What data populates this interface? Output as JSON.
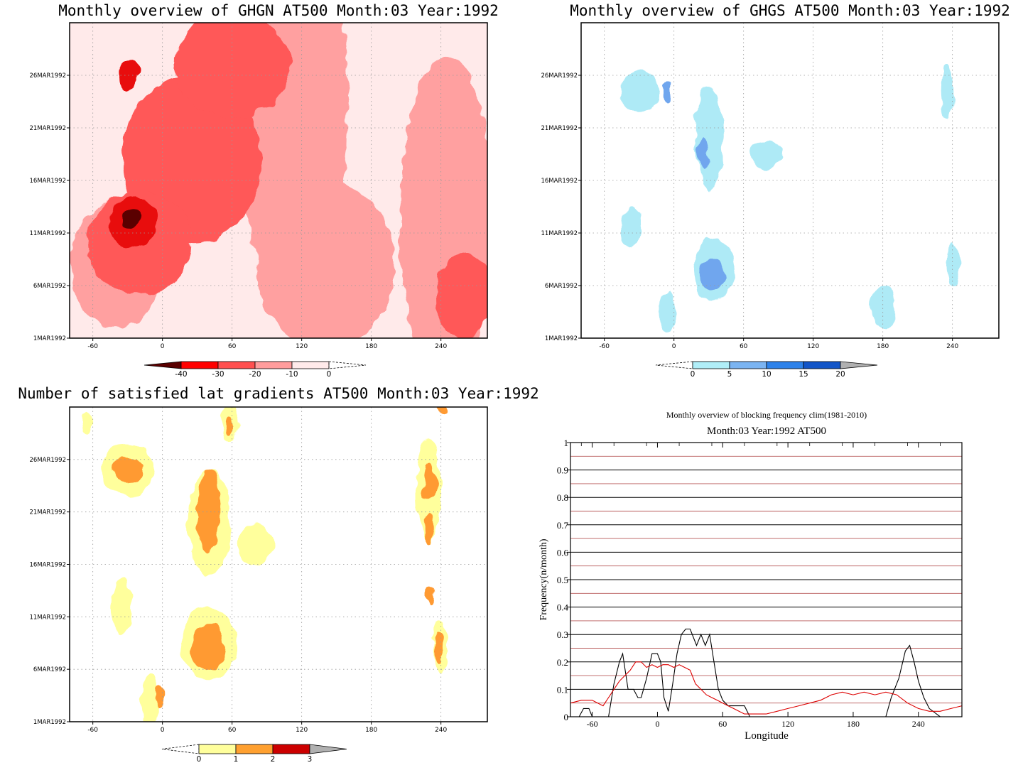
{
  "chart_data": [
    {
      "type": "heatmap",
      "title": "Monthly overview of GHGN AT500 Month:03 Year:1992",
      "x_ticks": [
        "-60",
        "0",
        "60",
        "120",
        "180",
        "240"
      ],
      "x_tick_values": [
        -60,
        0,
        60,
        120,
        180,
        240
      ],
      "xlim": [
        -80,
        280
      ],
      "y_ticks": [
        "1MAR1992",
        "6MAR1992",
        "11MAR1992",
        "16MAR1992",
        "21MAR1992",
        "26MAR1992"
      ],
      "y_tick_values": [
        1,
        6,
        11,
        16,
        21,
        26
      ],
      "ylim": [
        1,
        31
      ],
      "grid": true,
      "colorbar": {
        "ticks": [
          "-40",
          "-30",
          "-20",
          "-10",
          "0"
        ],
        "colors": [
          "#5a0000",
          "#ff0000",
          "#ff5050",
          "#ff9c9c",
          "#ffeaea"
        ]
      },
      "palette": [
        "#ffeaea",
        "#ffa0a0",
        "#ff5858",
        "#e81010",
        "#5a0000"
      ],
      "regions": [
        {
          "level": 1,
          "cx": 110,
          "cy": 24,
          "rx": 50,
          "ry": 18
        },
        {
          "level": 1,
          "cx": 140,
          "cy": 8,
          "rx": 60,
          "ry": 8
        },
        {
          "level": 1,
          "cx": 245,
          "cy": 12,
          "rx": 40,
          "ry": 16
        },
        {
          "level": 1,
          "cx": -40,
          "cy": 8,
          "rx": 40,
          "ry": 6
        },
        {
          "level": 2,
          "cx": 25,
          "cy": 18,
          "rx": 60,
          "ry": 8
        },
        {
          "level": 2,
          "cx": 60,
          "cy": 27,
          "rx": 50,
          "ry": 5
        },
        {
          "level": 2,
          "cx": -20,
          "cy": 10,
          "rx": 45,
          "ry": 5
        },
        {
          "level": 2,
          "cx": 260,
          "cy": 5,
          "rx": 25,
          "ry": 4
        },
        {
          "level": 3,
          "cx": -25,
          "cy": 12,
          "rx": 20,
          "ry": 2.5
        },
        {
          "level": 3,
          "cx": -30,
          "cy": 26,
          "rx": 10,
          "ry": 1.5
        },
        {
          "level": 4,
          "cx": -28,
          "cy": 12.3,
          "rx": 8,
          "ry": 1
        }
      ]
    },
    {
      "type": "heatmap",
      "title": "Monthly overview of GHGS AT500 Month:03 Year:1992",
      "x_ticks": [
        "-60",
        "0",
        "60",
        "120",
        "180",
        "240"
      ],
      "x_tick_values": [
        -60,
        0,
        60,
        120,
        180,
        240
      ],
      "xlim": [
        -80,
        280
      ],
      "y_ticks": [
        "1MAR1992",
        "6MAR1992",
        "11MAR1992",
        "16MAR1992",
        "21MAR1992",
        "26MAR1992"
      ],
      "y_tick_values": [
        1,
        6,
        11,
        16,
        21,
        26
      ],
      "ylim": [
        1,
        31
      ],
      "grid": true,
      "colorbar": {
        "ticks": [
          "0",
          "5",
          "10",
          "15",
          "20"
        ],
        "colors": [
          "#b0eef8",
          "#7bb4f2",
          "#2e82ea",
          "#1255c8",
          "#b0b0b0"
        ]
      },
      "palette": [
        "#ffffff",
        "#aeeaf6",
        "#6fa6ee",
        "#2e6fe0",
        "#1a3fae"
      ],
      "regions": [
        {
          "level": 1,
          "cx": 30,
          "cy": 20,
          "rx": 12,
          "ry": 5
        },
        {
          "level": 1,
          "cx": 35,
          "cy": 7.5,
          "rx": 18,
          "ry": 3
        },
        {
          "level": 1,
          "cx": -30,
          "cy": 24.5,
          "rx": 16,
          "ry": 2
        },
        {
          "level": 1,
          "cx": -37,
          "cy": 11.5,
          "rx": 7,
          "ry": 2
        },
        {
          "level": 1,
          "cx": 80,
          "cy": 18.5,
          "rx": 13,
          "ry": 1.3
        },
        {
          "level": 1,
          "cx": -6,
          "cy": 3.5,
          "rx": 7,
          "ry": 2
        },
        {
          "level": 1,
          "cx": 235,
          "cy": 24.5,
          "rx": 6,
          "ry": 2.5
        },
        {
          "level": 1,
          "cx": 240,
          "cy": 8,
          "rx": 5,
          "ry": 2
        },
        {
          "level": 1,
          "cx": 180,
          "cy": 4,
          "rx": 12,
          "ry": 2
        },
        {
          "level": 2,
          "cx": 33,
          "cy": 7,
          "rx": 10,
          "ry": 1.5
        },
        {
          "level": 2,
          "cx": 25,
          "cy": 18.5,
          "rx": 5,
          "ry": 1.5
        },
        {
          "level": 2,
          "cx": -5,
          "cy": 24.5,
          "rx": 4,
          "ry": 1
        }
      ]
    },
    {
      "type": "heatmap",
      "title": "Number of satisfied lat gradients AT500 Month:03 Year:1992",
      "x_ticks": [
        "-60",
        "0",
        "60",
        "120",
        "180",
        "240"
      ],
      "x_tick_values": [
        -60,
        0,
        60,
        120,
        180,
        240
      ],
      "xlim": [
        -80,
        280
      ],
      "y_ticks": [
        "1MAR1992",
        "6MAR1992",
        "11MAR1992",
        "16MAR1992",
        "21MAR1992",
        "26MAR1992"
      ],
      "y_tick_values": [
        1,
        6,
        11,
        16,
        21,
        26
      ],
      "ylim": [
        1,
        31
      ],
      "grid": true,
      "colorbar": {
        "ticks": [
          "0",
          "1",
          "2",
          "3"
        ],
        "colors": [
          "#ffff9c",
          "#ffa030",
          "#cc0000",
          "#b0b0b0"
        ]
      },
      "palette": [
        "#ffffff",
        "#ffff9c",
        "#ff9a30",
        "#cc0000"
      ],
      "regions": [
        {
          "level": 1,
          "cx": -30,
          "cy": 25,
          "rx": 22,
          "ry": 2.5
        },
        {
          "level": 1,
          "cx": 40,
          "cy": 20,
          "rx": 18,
          "ry": 5
        },
        {
          "level": 1,
          "cx": 40,
          "cy": 8.5,
          "rx": 25,
          "ry": 3.5
        },
        {
          "level": 1,
          "cx": 80,
          "cy": 18,
          "rx": 15,
          "ry": 2
        },
        {
          "level": 1,
          "cx": -35,
          "cy": 12,
          "rx": 9,
          "ry": 2.5
        },
        {
          "level": 1,
          "cx": 230,
          "cy": 23,
          "rx": 10,
          "ry": 5
        },
        {
          "level": 1,
          "cx": 240,
          "cy": 8,
          "rx": 7,
          "ry": 2.5
        },
        {
          "level": 1,
          "cx": -10,
          "cy": 3,
          "rx": 8,
          "ry": 2.5
        },
        {
          "level": 1,
          "cx": -65,
          "cy": 29.5,
          "rx": 5,
          "ry": 1
        },
        {
          "level": 1,
          "cx": 58,
          "cy": 29.5,
          "rx": 7,
          "ry": 2
        },
        {
          "level": 2,
          "cx": -30,
          "cy": 25,
          "rx": 14,
          "ry": 1.2
        },
        {
          "level": 2,
          "cx": 40,
          "cy": 21,
          "rx": 10,
          "ry": 4
        },
        {
          "level": 2,
          "cx": 40,
          "cy": 8,
          "rx": 14,
          "ry": 2.3
        },
        {
          "level": 2,
          "cx": 230,
          "cy": 24,
          "rx": 5,
          "ry": 2
        },
        {
          "level": 2,
          "cx": 230,
          "cy": 19.5,
          "rx": 5,
          "ry": 1.5
        },
        {
          "level": 2,
          "cx": 238,
          "cy": 8,
          "rx": 4,
          "ry": 1.5
        },
        {
          "level": 2,
          "cx": -2,
          "cy": 3.5,
          "rx": 3,
          "ry": 1
        },
        {
          "level": 2,
          "cx": 58,
          "cy": 29,
          "rx": 4,
          "ry": 1
        },
        {
          "level": 2,
          "cx": 231,
          "cy": 13,
          "rx": 3,
          "ry": 0.7
        },
        {
          "level": 2,
          "cx": 242,
          "cy": 31,
          "rx": 5,
          "ry": 0.8
        }
      ]
    },
    {
      "type": "line",
      "title": "Monthly overview of blocking frequency clim(1981-2010)",
      "subtitle": "Month:03 Year:1992  AT500",
      "xlabel": "Longitude",
      "ylabel": "Frequency(n/month)",
      "x_ticks": [
        "-60",
        "0",
        "60",
        "120",
        "180",
        "240"
      ],
      "x_tick_values": [
        -60,
        0,
        60,
        120,
        180,
        240
      ],
      "xlim": [
        -80,
        280
      ],
      "y_ticks": [
        "0",
        "0.1",
        "0.2",
        "0.3",
        "0.4",
        "0.5",
        "0.6",
        "0.7",
        "0.8",
        "0.9",
        "1"
      ],
      "y_tick_values": [
        0,
        0.1,
        0.2,
        0.3,
        0.4,
        0.5,
        0.6,
        0.7,
        0.8,
        0.9,
        1
      ],
      "ylim": [
        0,
        1
      ],
      "series": [
        {
          "color": "#000000",
          "x": [
            -80,
            -72,
            -68,
            -63,
            -60,
            -45,
            -40,
            -35,
            -32,
            -27,
            -22,
            -18,
            -15,
            -10,
            -5,
            0,
            3,
            6,
            10,
            14,
            18,
            22,
            26,
            30,
            36,
            40,
            44,
            48,
            52,
            56,
            60,
            65,
            70,
            80,
            85,
            90,
            100,
            200,
            210,
            215,
            222,
            228,
            232,
            236,
            240,
            245,
            250,
            260,
            270,
            280
          ],
          "y": [
            0,
            0,
            0.03,
            0.03,
            0,
            0,
            0.12,
            0.2,
            0.23,
            0.1,
            0.1,
            0.07,
            0.07,
            0.14,
            0.23,
            0.23,
            0.2,
            0.07,
            0.02,
            0.12,
            0.23,
            0.3,
            0.32,
            0.32,
            0.26,
            0.3,
            0.26,
            0.3,
            0.2,
            0.1,
            0.06,
            0.04,
            0.04,
            0.04,
            0,
            0,
            0,
            0,
            0,
            0.07,
            0.14,
            0.24,
            0.26,
            0.2,
            0.13,
            0.07,
            0.03,
            0,
            0,
            0
          ]
        },
        {
          "color": "#dd0000",
          "x": [
            -80,
            -70,
            -60,
            -50,
            -45,
            -40,
            -35,
            -30,
            -25,
            -20,
            -15,
            -10,
            -5,
            0,
            5,
            10,
            15,
            20,
            25,
            30,
            35,
            40,
            45,
            50,
            55,
            60,
            65,
            70,
            75,
            80,
            90,
            100,
            110,
            120,
            130,
            140,
            150,
            160,
            170,
            180,
            190,
            200,
            210,
            220,
            230,
            240,
            250,
            260,
            270,
            280
          ],
          "y": [
            0.05,
            0.06,
            0.06,
            0.04,
            0.07,
            0.1,
            0.13,
            0.15,
            0.17,
            0.2,
            0.2,
            0.18,
            0.19,
            0.18,
            0.19,
            0.19,
            0.18,
            0.19,
            0.18,
            0.17,
            0.12,
            0.1,
            0.08,
            0.07,
            0.06,
            0.05,
            0.04,
            0.03,
            0.02,
            0.01,
            0.01,
            0.01,
            0.02,
            0.03,
            0.04,
            0.05,
            0.06,
            0.08,
            0.09,
            0.08,
            0.09,
            0.08,
            0.09,
            0.08,
            0.05,
            0.03,
            0.02,
            0.02,
            0.03,
            0.04
          ]
        }
      ],
      "hlines": {
        "black": [
          0.1,
          0.2,
          0.3,
          0.4,
          0.5,
          0.6,
          0.7,
          0.8,
          0.9
        ],
        "red": [
          0.05,
          0.15,
          0.25,
          0.35,
          0.45,
          0.55,
          0.65,
          0.75,
          0.85,
          0.95
        ]
      }
    }
  ]
}
